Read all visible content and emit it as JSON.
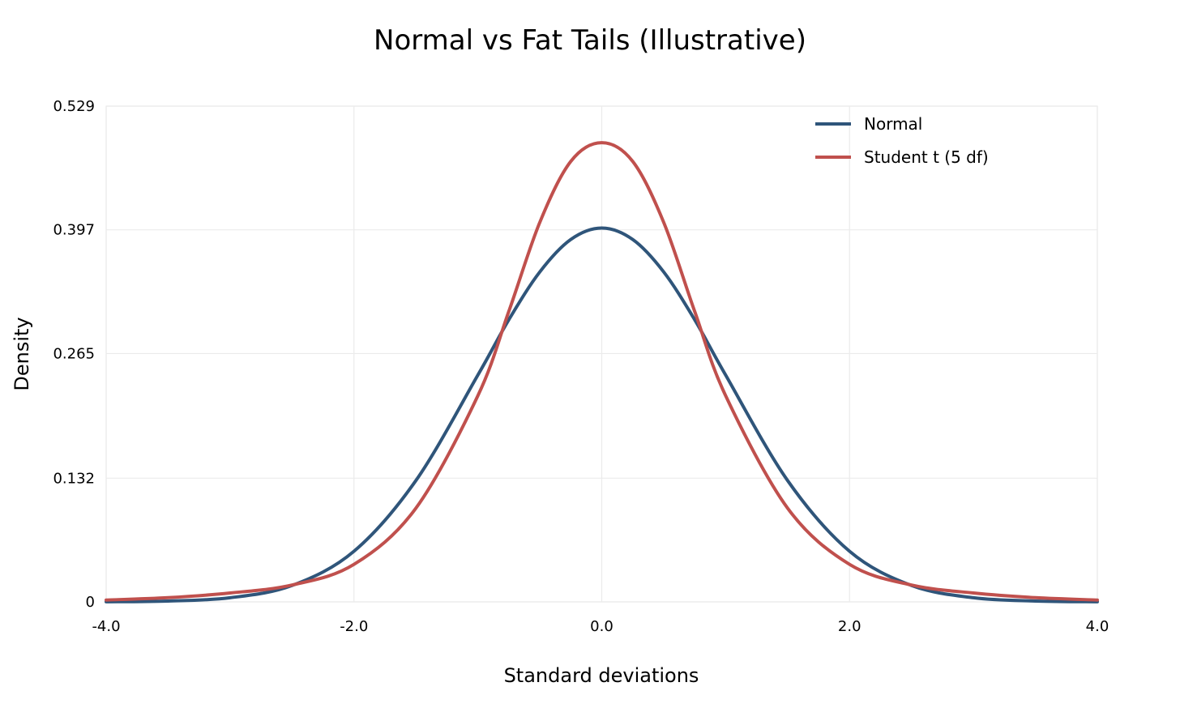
{
  "chart_data": {
    "type": "line",
    "title": "Normal vs Fat Tails (Illustrative)",
    "xlabel": "Standard deviations",
    "ylabel": "Density",
    "xlim": [
      -4.0,
      4.0
    ],
    "ylim": [
      0,
      0.529
    ],
    "x_ticks": [
      -4.0,
      -2.0,
      0.0,
      2.0,
      4.0
    ],
    "x_tick_labels": [
      "-4.0",
      "-2.0",
      "0.0",
      "2.0",
      "4.0"
    ],
    "y_ticks": [
      0,
      0.132,
      0.265,
      0.397,
      0.529
    ],
    "y_tick_labels": [
      "0",
      "0.132",
      "0.265",
      "0.397",
      "0.529"
    ],
    "grid": true,
    "legend_position": "top-right",
    "x": [
      -4.0,
      -3.5,
      -3.0,
      -2.5,
      -2.0,
      -1.5,
      -1.0,
      -0.75,
      -0.5,
      -0.25,
      0.0,
      0.25,
      0.5,
      0.75,
      1.0,
      1.5,
      2.0,
      2.5,
      3.0,
      3.5,
      4.0
    ],
    "series": [
      {
        "name": "Normal",
        "color": "#2f557a",
        "values": [
          0.0001,
          0.0009,
          0.0044,
          0.0175,
          0.054,
          0.1295,
          0.242,
          0.3011,
          0.3521,
          0.3867,
          0.3989,
          0.3867,
          0.3521,
          0.3011,
          0.242,
          0.1295,
          0.054,
          0.0175,
          0.0044,
          0.0009,
          0.0001
        ]
      },
      {
        "name": "Student t (5 df)",
        "color": "#c0504d",
        "values": [
          0.002,
          0.0045,
          0.0095,
          0.018,
          0.04,
          0.1,
          0.22,
          0.31,
          0.405,
          0.47,
          0.49,
          0.47,
          0.405,
          0.31,
          0.22,
          0.1,
          0.04,
          0.018,
          0.0095,
          0.0045,
          0.002
        ]
      }
    ]
  }
}
